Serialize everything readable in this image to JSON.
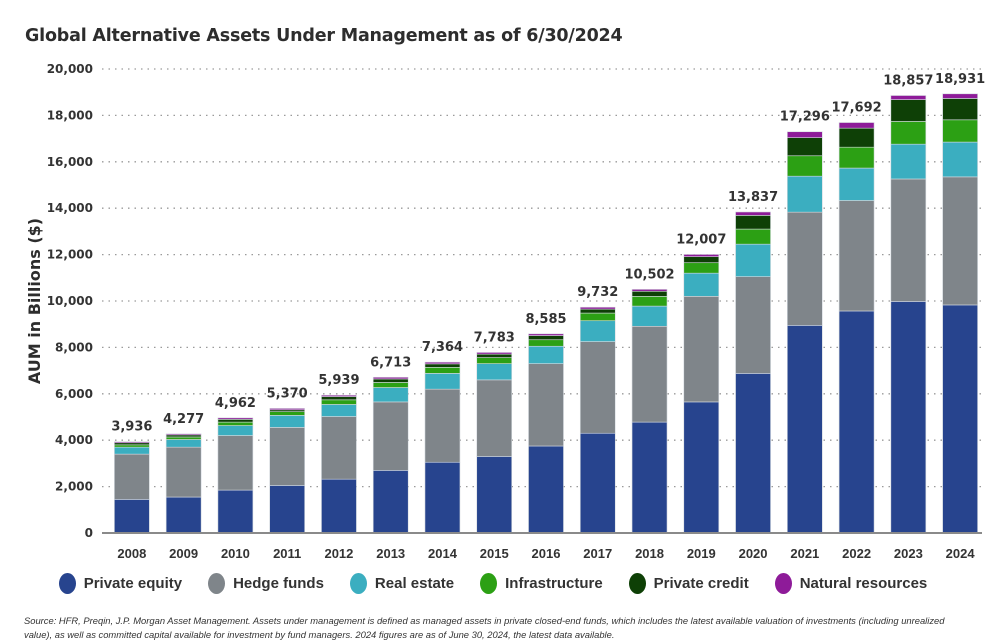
{
  "title": "Global Alternative Assets Under Management as of 6/30/2024",
  "source_note": "Source: HFR, Preqin, J.P. Morgan Asset Management. Assets under management is defined as managed assets in private closed-end funds, which includes the latest available valuation of investments (including unrealized value), as well as committed capital available for investment by fund managers. 2024 figures are as of June 30, 2024, the latest data available.",
  "chart_data": {
    "type": "bar",
    "stacked": true,
    "title": "Global Alternative Assets Under Management as of 6/30/2024",
    "xlabel": "",
    "ylabel": "AUM in Billions ($)",
    "ylim": [
      0,
      20000
    ],
    "yticks": [
      0,
      2000,
      4000,
      6000,
      8000,
      10000,
      12000,
      14000,
      16000,
      18000,
      20000
    ],
    "ytick_labels": [
      "0",
      "2,000",
      "4,000",
      "6,000",
      "8,000",
      "10,000",
      "12,000",
      "14,000",
      "16,000",
      "18,000",
      "20,000"
    ],
    "grid": "horizontal-dotted",
    "legend_position": "bottom",
    "categories": [
      "2008",
      "2009",
      "2010",
      "2011",
      "2012",
      "2013",
      "2014",
      "2015",
      "2016",
      "2017",
      "2018",
      "2019",
      "2020",
      "2021",
      "2022",
      "2023",
      "2024"
    ],
    "totals": [
      3936,
      4277,
      4962,
      5370,
      5939,
      6713,
      7364,
      7783,
      8585,
      9732,
      10502,
      12007,
      13837,
      17296,
      17692,
      18857,
      18931
    ],
    "total_labels": [
      "3,936",
      "4,277",
      "4,962",
      "5,370",
      "5,939",
      "6,713",
      "7,364",
      "7,783",
      "8,585",
      "9,732",
      "10,502",
      "12,007",
      "13,837",
      "17,296",
      "17,692",
      "18,857",
      "18,931"
    ],
    "series": [
      {
        "name": "Private equity",
        "color": "#27448e",
        "values": [
          1450,
          1550,
          1850,
          2050,
          2320,
          2700,
          3050,
          3300,
          3750,
          4300,
          4780,
          5650,
          6880,
          8950,
          9570,
          9980,
          9830
        ]
      },
      {
        "name": "Hedge funds",
        "color": "#7f858a",
        "values": [
          1950,
          2150,
          2350,
          2500,
          2700,
          2950,
          3150,
          3300,
          3550,
          3950,
          4130,
          4550,
          4170,
          4880,
          4760,
          5280,
          5520
        ]
      },
      {
        "name": "Real estate",
        "color": "#3baec0",
        "values": [
          300,
          330,
          430,
          520,
          520,
          620,
          680,
          700,
          750,
          900,
          870,
          1000,
          1400,
          1550,
          1400,
          1500,
          1500
        ]
      },
      {
        "name": "Infrastructure",
        "color": "#2ca014",
        "values": [
          100,
          110,
          150,
          160,
          200,
          220,
          260,
          260,
          280,
          330,
          420,
          450,
          650,
          880,
          900,
          980,
          960
        ]
      },
      {
        "name": "Private credit",
        "color": "#0e4006",
        "values": [
          90,
          90,
          120,
          80,
          140,
          150,
          150,
          150,
          180,
          170,
          220,
          260,
          590,
          780,
          820,
          940,
          920
        ]
      },
      {
        "name": "Natural resources",
        "color": "#8e1b99",
        "values": [
          46,
          47,
          62,
          60,
          59,
          73,
          74,
          73,
          75,
          82,
          82,
          97,
          147,
          256,
          242,
          177,
          201
        ]
      }
    ]
  }
}
